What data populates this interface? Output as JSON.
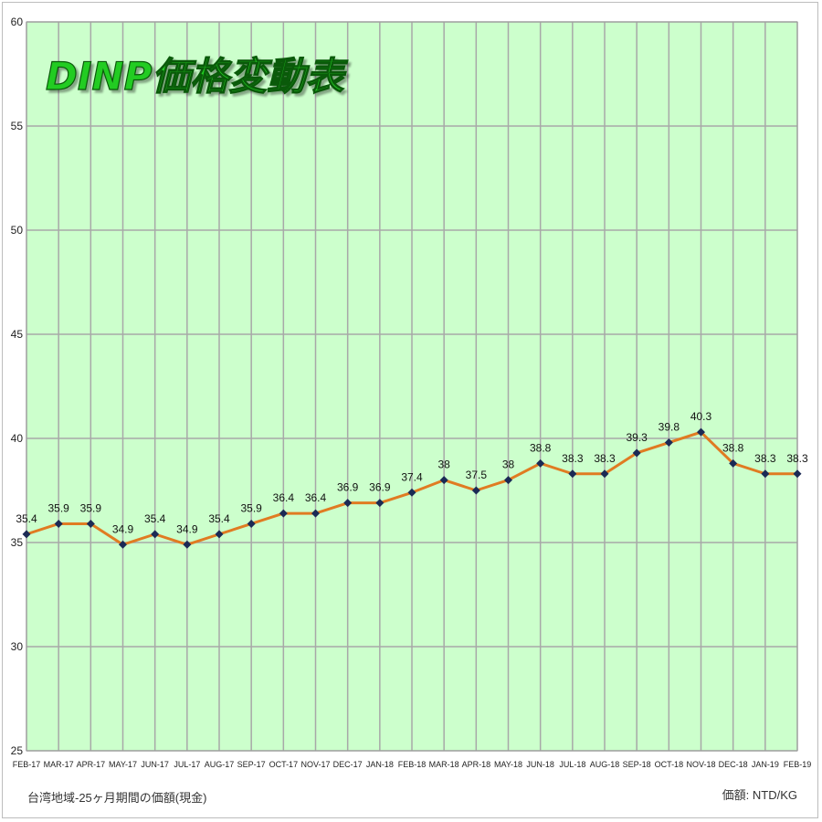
{
  "chart_data": {
    "type": "line",
    "title": "DINP価格変動表",
    "categories": [
      "FEB-17",
      "MAR-17",
      "APR-17",
      "MAY-17",
      "JUN-17",
      "JUL-17",
      "AUG-17",
      "SEP-17",
      "OCT-17",
      "NOV-17",
      "DEC-17",
      "JAN-18",
      "FEB-18",
      "MAR-18",
      "APR-18",
      "MAY-18",
      "JUN-18",
      "JUL-18",
      "AUG-18",
      "SEP-18",
      "OCT-18",
      "NOV-18",
      "DEC-18",
      "JAN-19",
      "FEB-19"
    ],
    "series": [
      {
        "values": [
          35.4,
          35.9,
          35.9,
          34.9,
          35.4,
          34.9,
          35.4,
          35.9,
          36.4,
          36.4,
          36.9,
          36.9,
          37.4,
          38,
          37.5,
          38,
          38.8,
          38.3,
          38.3,
          39.3,
          39.8,
          40.3,
          38.8,
          38.3,
          38.3
        ]
      }
    ],
    "data_labels": [
      "35.4",
      "35.9",
      "35.9",
      "34.9",
      "35.4",
      "34.9",
      "35.4",
      "35.9",
      "36.4",
      "36.4",
      "36.9",
      "36.9",
      "37.4",
      "38",
      "37.5",
      "38",
      "38.8",
      "38.3",
      "38.3",
      "39.3",
      "39.8",
      "40.3",
      "38.8",
      "38.3",
      "38.3"
    ],
    "ylim": [
      25,
      60
    ],
    "yticks": [
      "25",
      "30",
      "35",
      "40",
      "45",
      "50",
      "55",
      "60"
    ],
    "grid": true,
    "colors": {
      "plot_background": "#ccffcc",
      "line": "#e07b22",
      "marker": "#1b2a55",
      "grid": "#a8a8a8",
      "title_fill": "#22cc22",
      "title_stroke": "#0a5a0a"
    },
    "footnote_left": "台湾地域-25ヶ月期間の価額(現金)",
    "footnote_right": "価額: NTD/KG"
  }
}
